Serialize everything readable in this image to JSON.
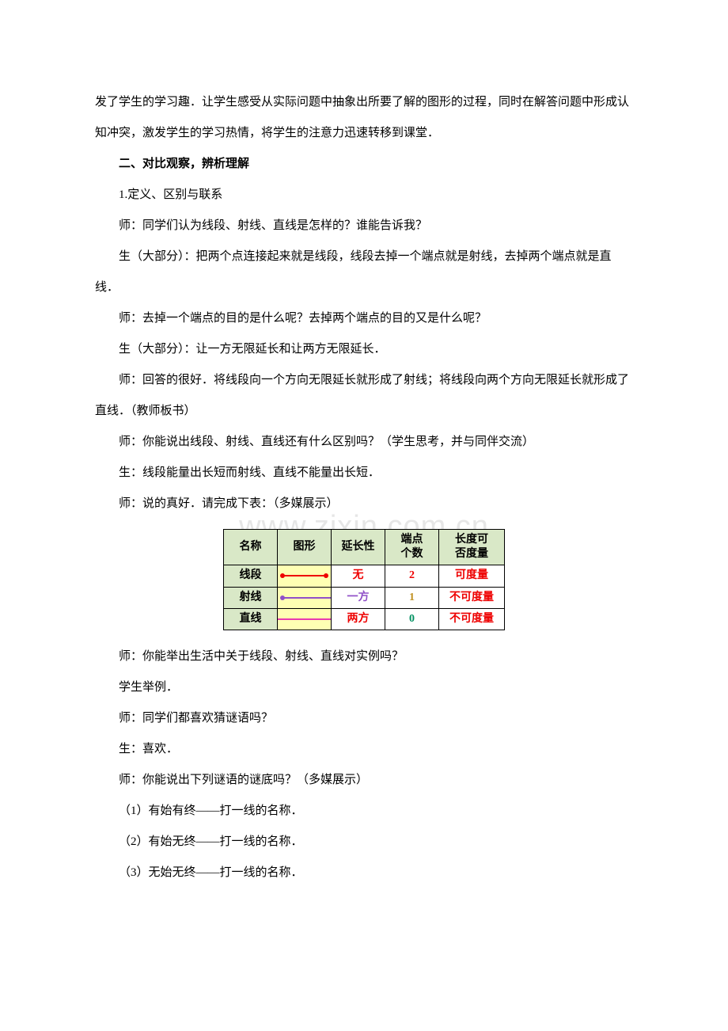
{
  "text_color": "#000000",
  "bg_color": "#ffffff",
  "font_size_pt": 12,
  "paragraphs": {
    "p1": "发了学生的学习趣．让学生感受从实际问题中抽象出所要了解的图形的过程，同时在解答问题中形成认知冲突，激发学生的学习热情，将学生的注意力迅速转移到课堂．",
    "h2": "二、对比观察，辨析理解",
    "p2": "1.定义、区别与联系",
    "p3": "师：同学们认为线段、射线、直线是怎样的？谁能告诉我？",
    "p4": "生（大部分）：把两个点连接起来就是线段，线段去掉一个端点就是射线，去掉两个端点就是直线．",
    "p5": "师：去掉一个端点的目的是什么呢？去掉两个端点的目的又是什么呢？",
    "p6": "生（大部分）：让一方无限延长和让两方无限延长．",
    "p7": "师：回答的很好．将线段向一个方向无限延长就形成了射线；将线段向两个方向无限延长就形成了直线．（教师板书）",
    "p8": "师：你能说出线段、射线、直线还有什么区别吗？（学生思考，并与同伴交流）",
    "p9": "生：线段能量出长短而射线、直线不能量出长短．",
    "p10": "师：说的真好．请完成下表：（多媒展示）",
    "p11": "师：你能举出生活中关于线段、射线、直线对实例吗？",
    "p12": "学生举例．",
    "p13": "师：同学们都喜欢猜谜语吗？",
    "p14": "生：喜欢．",
    "p15": "师：你能说出下列谜语的谜底吗？（多媒展示）",
    "p16": "（1）有始有终——打一线的名称．",
    "p17": "（2）有始无终——打一线的名称．",
    "p18": "（3）无始无终——打一线的名称．"
  },
  "watermark": "www.zixin.com.cn",
  "table": {
    "header_bg": "#d9e8c7",
    "graph_bg": "#feffb3",
    "border_color": "#000000",
    "font_size_pt": 11,
    "columns": {
      "name": "名称",
      "graph": "图形",
      "extend": "延长性",
      "endpoints_l1": "端点",
      "endpoints_l2": "个数",
      "measurable_l1": "长度可",
      "measurable_l2": "否度量"
    },
    "rows": [
      {
        "name": "线段",
        "graph_type": "segment",
        "graph_color": "#ee0000",
        "extend": "无",
        "extend_color": "#ee0000",
        "endpoints": "2",
        "endpoints_color": "#ee0000",
        "measurable": "可度量",
        "measurable_color": "#ee0000"
      },
      {
        "name": "射线",
        "graph_type": "ray",
        "graph_color": "#9050c8",
        "extend": "一方",
        "extend_color": "#9050c8",
        "endpoints": "1",
        "endpoints_color": "#c09020",
        "measurable": "不可度量",
        "measurable_color": "#ee0000"
      },
      {
        "name": "直线",
        "graph_type": "line",
        "graph_color": "#e83ab0",
        "extend": "两方",
        "extend_color": "#ee0000",
        "endpoints": "0",
        "endpoints_color": "#009060",
        "measurable": "不可度量",
        "measurable_color": "#ee0000"
      }
    ]
  }
}
